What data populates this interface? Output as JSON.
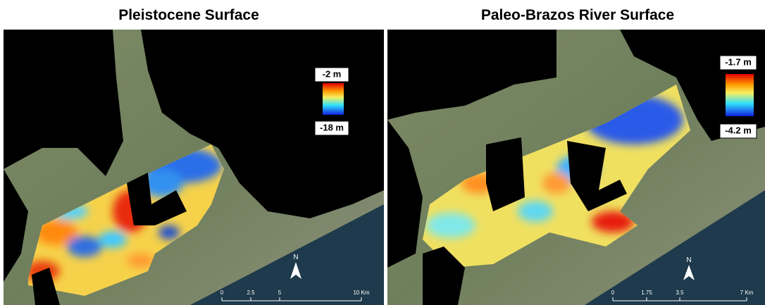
{
  "panels": [
    {
      "title": "Pleistocene Surface",
      "legend": {
        "max_label": "-2 m",
        "min_label": "-18 m"
      },
      "north": "N",
      "scale_labels": [
        "0",
        "2.5",
        "5",
        "10 Km"
      ]
    },
    {
      "title": "Paleo-Brazos River Surface",
      "legend": {
        "max_label": "-1.7 m",
        "min_label": "-4.2 m"
      },
      "north": "N",
      "scale_labels": [
        "0",
        "1.75",
        "3.5",
        "7 Km"
      ]
    }
  ]
}
